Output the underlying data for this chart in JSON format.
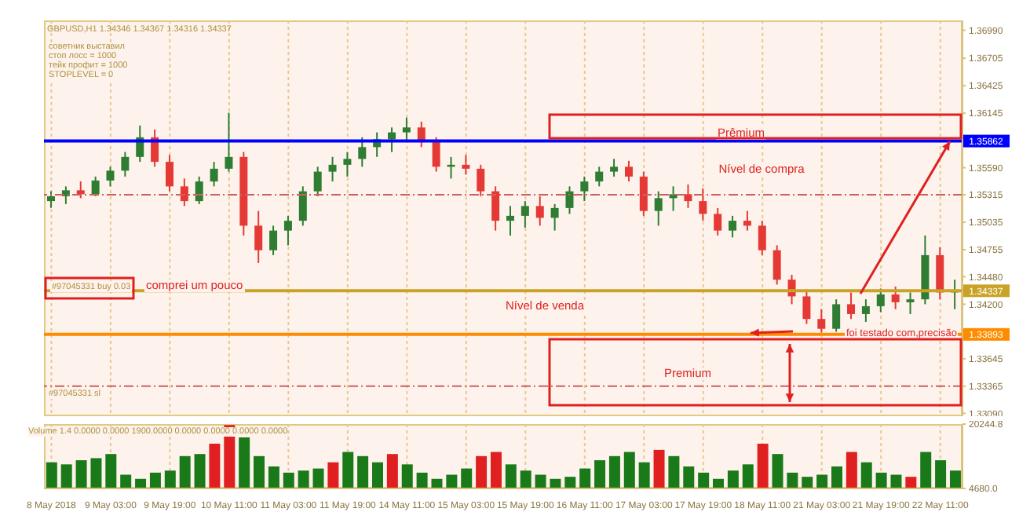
{
  "chart_data": [
    {
      "type": "candlestick",
      "title": "GBPUSD,H1 1.34346 1.34367 1.34316 1.34337",
      "ohlc": [
        [
          1.3525,
          1.3535,
          1.3518,
          1.353
        ],
        [
          1.353,
          1.354,
          1.3522,
          1.3536
        ],
        [
          1.3536,
          1.3545,
          1.3528,
          1.3532
        ],
        [
          1.3532,
          1.355,
          1.353,
          1.3546
        ],
        [
          1.3546,
          1.356,
          1.354,
          1.3556
        ],
        [
          1.3556,
          1.3575,
          1.355,
          1.357
        ],
        [
          1.357,
          1.3602,
          1.3565,
          1.359
        ],
        [
          1.359,
          1.3598,
          1.356,
          1.3565
        ],
        [
          1.3565,
          1.3572,
          1.3535,
          1.354
        ],
        [
          1.354,
          1.3548,
          1.352,
          1.3525
        ],
        [
          1.3525,
          1.355,
          1.3522,
          1.3545
        ],
        [
          1.3545,
          1.3565,
          1.354,
          1.3558
        ],
        [
          1.3558,
          1.3615,
          1.3555,
          1.357
        ],
        [
          1.357,
          1.3575,
          1.349,
          1.35
        ],
        [
          1.35,
          1.3515,
          1.3462,
          1.3475
        ],
        [
          1.3475,
          1.35,
          1.347,
          1.3495
        ],
        [
          1.3495,
          1.351,
          1.348,
          1.3505
        ],
        [
          1.3505,
          1.354,
          1.35,
          1.3535
        ],
        [
          1.3535,
          1.356,
          1.353,
          1.3555
        ],
        [
          1.3555,
          1.357,
          1.3545,
          1.3562
        ],
        [
          1.3562,
          1.3575,
          1.355,
          1.3568
        ],
        [
          1.3568,
          1.359,
          1.356,
          1.358
        ],
        [
          1.358,
          1.3595,
          1.357,
          1.3588
        ],
        [
          1.3588,
          1.36,
          1.3575,
          1.3595
        ],
        [
          1.3595,
          1.361,
          1.3585,
          1.36
        ],
        [
          1.36,
          1.3606,
          1.358,
          1.3585
        ],
        [
          1.3585,
          1.359,
          1.3555,
          1.356
        ],
        [
          1.356,
          1.357,
          1.3548,
          1.3562
        ],
        [
          1.3562,
          1.3572,
          1.3552,
          1.3558
        ],
        [
          1.3558,
          1.3562,
          1.353,
          1.3535
        ],
        [
          1.3535,
          1.354,
          1.3495,
          1.3505
        ],
        [
          1.3505,
          1.352,
          1.349,
          1.351
        ],
        [
          1.351,
          1.3525,
          1.3498,
          1.352
        ],
        [
          1.352,
          1.353,
          1.35,
          1.3508
        ],
        [
          1.3508,
          1.3522,
          1.3495,
          1.3518
        ],
        [
          1.3518,
          1.354,
          1.3512,
          1.3535
        ],
        [
          1.3535,
          1.355,
          1.3525,
          1.3545
        ],
        [
          1.3545,
          1.356,
          1.354,
          1.3555
        ],
        [
          1.3555,
          1.3568,
          1.355,
          1.356
        ],
        [
          1.356,
          1.3566,
          1.3545,
          1.355
        ],
        [
          1.355,
          1.3555,
          1.351,
          1.3515
        ],
        [
          1.3515,
          1.3535,
          1.35,
          1.3528
        ],
        [
          1.3528,
          1.354,
          1.3515,
          1.3532
        ],
        [
          1.3532,
          1.3542,
          1.3518,
          1.3525
        ],
        [
          1.3525,
          1.3538,
          1.3505,
          1.3512
        ],
        [
          1.3512,
          1.3518,
          1.349,
          1.3495
        ],
        [
          1.3495,
          1.351,
          1.3488,
          1.3505
        ],
        [
          1.3505,
          1.3515,
          1.3495,
          1.35
        ],
        [
          1.35,
          1.3505,
          1.347,
          1.3475
        ],
        [
          1.3475,
          1.348,
          1.344,
          1.3445
        ],
        [
          1.3445,
          1.345,
          1.342,
          1.3428
        ],
        [
          1.3428,
          1.3435,
          1.34,
          1.3405
        ],
        [
          1.3405,
          1.3415,
          1.3391,
          1.3395
        ],
        [
          1.3395,
          1.3425,
          1.3392,
          1.342
        ],
        [
          1.342,
          1.3432,
          1.3405,
          1.341
        ],
        [
          1.341,
          1.3425,
          1.3402,
          1.3418
        ],
        [
          1.3418,
          1.3436,
          1.3412,
          1.343
        ],
        [
          1.343,
          1.3438,
          1.3415,
          1.3422
        ],
        [
          1.3422,
          1.3432,
          1.341,
          1.3425
        ],
        [
          1.3425,
          1.349,
          1.342,
          1.347
        ],
        [
          1.347,
          1.3478,
          1.3425,
          1.3432
        ],
        [
          1.3432,
          1.3445,
          1.3415,
          1.34337
        ]
      ],
      "colors": [
        "#2e7d32",
        "#2e7d32",
        "#e53935",
        "#2e7d32",
        "#2e7d32",
        "#2e7d32",
        "#2e7d32",
        "#e53935",
        "#e53935",
        "#e53935",
        "#2e7d32",
        "#2e7d32",
        "#2e7d32",
        "#e53935",
        "#e53935",
        "#2e7d32",
        "#2e7d32",
        "#2e7d32",
        "#2e7d32",
        "#2e7d32",
        "#2e7d32",
        "#2e7d32",
        "#2e7d32",
        "#2e7d32",
        "#2e7d32",
        "#e53935",
        "#e53935",
        "#2e7d32",
        "#e53935",
        "#e53935",
        "#e53935",
        "#2e7d32",
        "#2e7d32",
        "#e53935",
        "#2e7d32",
        "#2e7d32",
        "#2e7d32",
        "#2e7d32",
        "#2e7d32",
        "#e53935",
        "#e53935",
        "#2e7d32",
        "#2e7d32",
        "#e53935",
        "#e53935",
        "#e53935",
        "#2e7d32",
        "#e53935",
        "#e53935",
        "#e53935",
        "#e53935",
        "#e53935",
        "#e53935",
        "#2e7d32",
        "#e53935",
        "#2e7d32",
        "#2e7d32",
        "#e53935",
        "#2e7d32",
        "#2e7d32",
        "#e53935",
        "#2e7d32"
      ],
      "ylim": [
        1.3306,
        1.3709
      ],
      "yticks": [
        {
          "value": 1.3699,
          "label": "1.36990"
        },
        {
          "value": 1.36705,
          "label": "1.36705"
        },
        {
          "value": 1.36425,
          "label": "1.36425"
        },
        {
          "value": 1.36145,
          "label": "1.36145"
        },
        {
          "value": 1.3559,
          "label": "1.35590"
        },
        {
          "value": 1.35315,
          "label": "1.35315"
        },
        {
          "value": 1.35035,
          "label": "1.35035"
        },
        {
          "value": 1.34755,
          "label": "1.34755"
        },
        {
          "value": 1.3448,
          "label": "1.34480"
        },
        {
          "value": 1.342,
          "label": "1.34200"
        },
        {
          "value": 1.33645,
          "label": "1.33645"
        },
        {
          "value": 1.33365,
          "label": "1.33365"
        },
        {
          "value": 1.3309,
          "label": "1.33090"
        }
      ],
      "ref_lines": [
        {
          "axis": "y",
          "value": 1.35862,
          "label": "1.35862",
          "color": "#0000ff",
          "line_style": "solid"
        },
        {
          "axis": "y",
          "value": 1.33893,
          "label": "1.33893",
          "color": "#ff8c00",
          "line_style": "solid"
        },
        {
          "axis": "y",
          "value": 1.34337,
          "label": "1.34337",
          "color": "#c9a227",
          "line_style": "solid"
        },
        {
          "axis": "y",
          "value": 1.35315,
          "color": "#d06060",
          "line_style": "dashed"
        },
        {
          "axis": "y",
          "value": 1.33365,
          "color": "#d06060",
          "line_style": "dashed"
        }
      ],
      "annotations": [
        "советник выставил",
        "стоп лосс = 1000",
        "тейк профит = 1000",
        "STOPLEVEL = 0",
        "Prêmium",
        "Nível de compra",
        "comprei um pouco",
        "#97045331 buy 0.03",
        "Nível de venda",
        "foi testado com,precisão",
        "Premium",
        "#97045331 sl"
      ],
      "grid": "x"
    },
    {
      "type": "bar",
      "title": "Volume 1.4 0.0000 0.0000 1900.0000 0.0000 0.0000 0.0000 0.0000",
      "categories": [
        "8 May 2018",
        null,
        null,
        null,
        "9 May 03:00",
        null,
        null,
        null,
        "9 May 19:00",
        null,
        null,
        null,
        "10 May 11:00",
        null,
        null,
        null,
        "11 May 03:00",
        null,
        null,
        null,
        "11 May 19:00",
        null,
        null,
        null,
        "14 May 11:00",
        null,
        null,
        null,
        "15 May 03:00",
        null,
        null,
        null,
        "15 May 19:00",
        null,
        null,
        null,
        "16 May 11:00",
        null,
        null,
        null,
        "17 May 03:00",
        null,
        null,
        null,
        "17 May 19:00",
        null,
        null,
        null,
        "18 May 11:00",
        null,
        null,
        null,
        "21 May 03:00",
        null,
        null,
        null,
        "21 May 19:00",
        null,
        null,
        null,
        "22 May 11:00",
        null
      ],
      "values": [
        11000,
        10500,
        11500,
        12000,
        13000,
        8000,
        7000,
        8500,
        9000,
        12500,
        13000,
        15500,
        20000,
        17000,
        12500,
        10000,
        8500,
        9000,
        9500,
        11000,
        13500,
        12500,
        11000,
        13000,
        10500,
        8500,
        7000,
        8000,
        9500,
        12500,
        13500,
        10500,
        9000,
        8000,
        7000,
        7500,
        9500,
        11500,
        12500,
        13500,
        11000,
        14000,
        12500,
        10000,
        8500,
        7000,
        9000,
        10500,
        15500,
        13000,
        8500,
        7500,
        8000,
        10000,
        13500,
        11000,
        8500,
        8000,
        7500,
        13500,
        11500,
        9000
      ],
      "colors": [
        "#1a7a1a",
        "#1a7a1a",
        "#1a7a1a",
        "#1a7a1a",
        "#1a7a1a",
        "#1a7a1a",
        "#1a7a1a",
        "#1a7a1a",
        "#1a7a1a",
        "#1a7a1a",
        "#1a7a1a",
        "#e02020",
        "#e02020",
        "#1a7a1a",
        "#1a7a1a",
        "#1a7a1a",
        "#1a7a1a",
        "#1a7a1a",
        "#1a7a1a",
        "#e02020",
        "#1a7a1a",
        "#1a7a1a",
        "#1a7a1a",
        "#e02020",
        "#1a7a1a",
        "#1a7a1a",
        "#1a7a1a",
        "#1a7a1a",
        "#1a7a1a",
        "#e02020",
        "#e02020",
        "#1a7a1a",
        "#1a7a1a",
        "#1a7a1a",
        "#1a7a1a",
        "#1a7a1a",
        "#1a7a1a",
        "#1a7a1a",
        "#1a7a1a",
        "#1a7a1a",
        "#1a7a1a",
        "#e02020",
        "#1a7a1a",
        "#1a7a1a",
        "#1a7a1a",
        "#1a7a1a",
        "#1a7a1a",
        "#1a7a1a",
        "#e02020",
        "#1a7a1a",
        "#1a7a1a",
        "#1a7a1a",
        "#1a7a1a",
        "#1a7a1a",
        "#e02020",
        "#1a7a1a",
        "#1a7a1a",
        "#1a7a1a",
        "#e02020",
        "#1a7a1a",
        "#1a7a1a",
        "#1a7a1a"
      ],
      "ylim": [
        4680,
        20244.8
      ],
      "yticks": [
        {
          "value": 4680,
          "label": "4680.0"
        },
        {
          "value": 20244.8,
          "label": "20244.8"
        }
      ],
      "grid": "x"
    }
  ]
}
